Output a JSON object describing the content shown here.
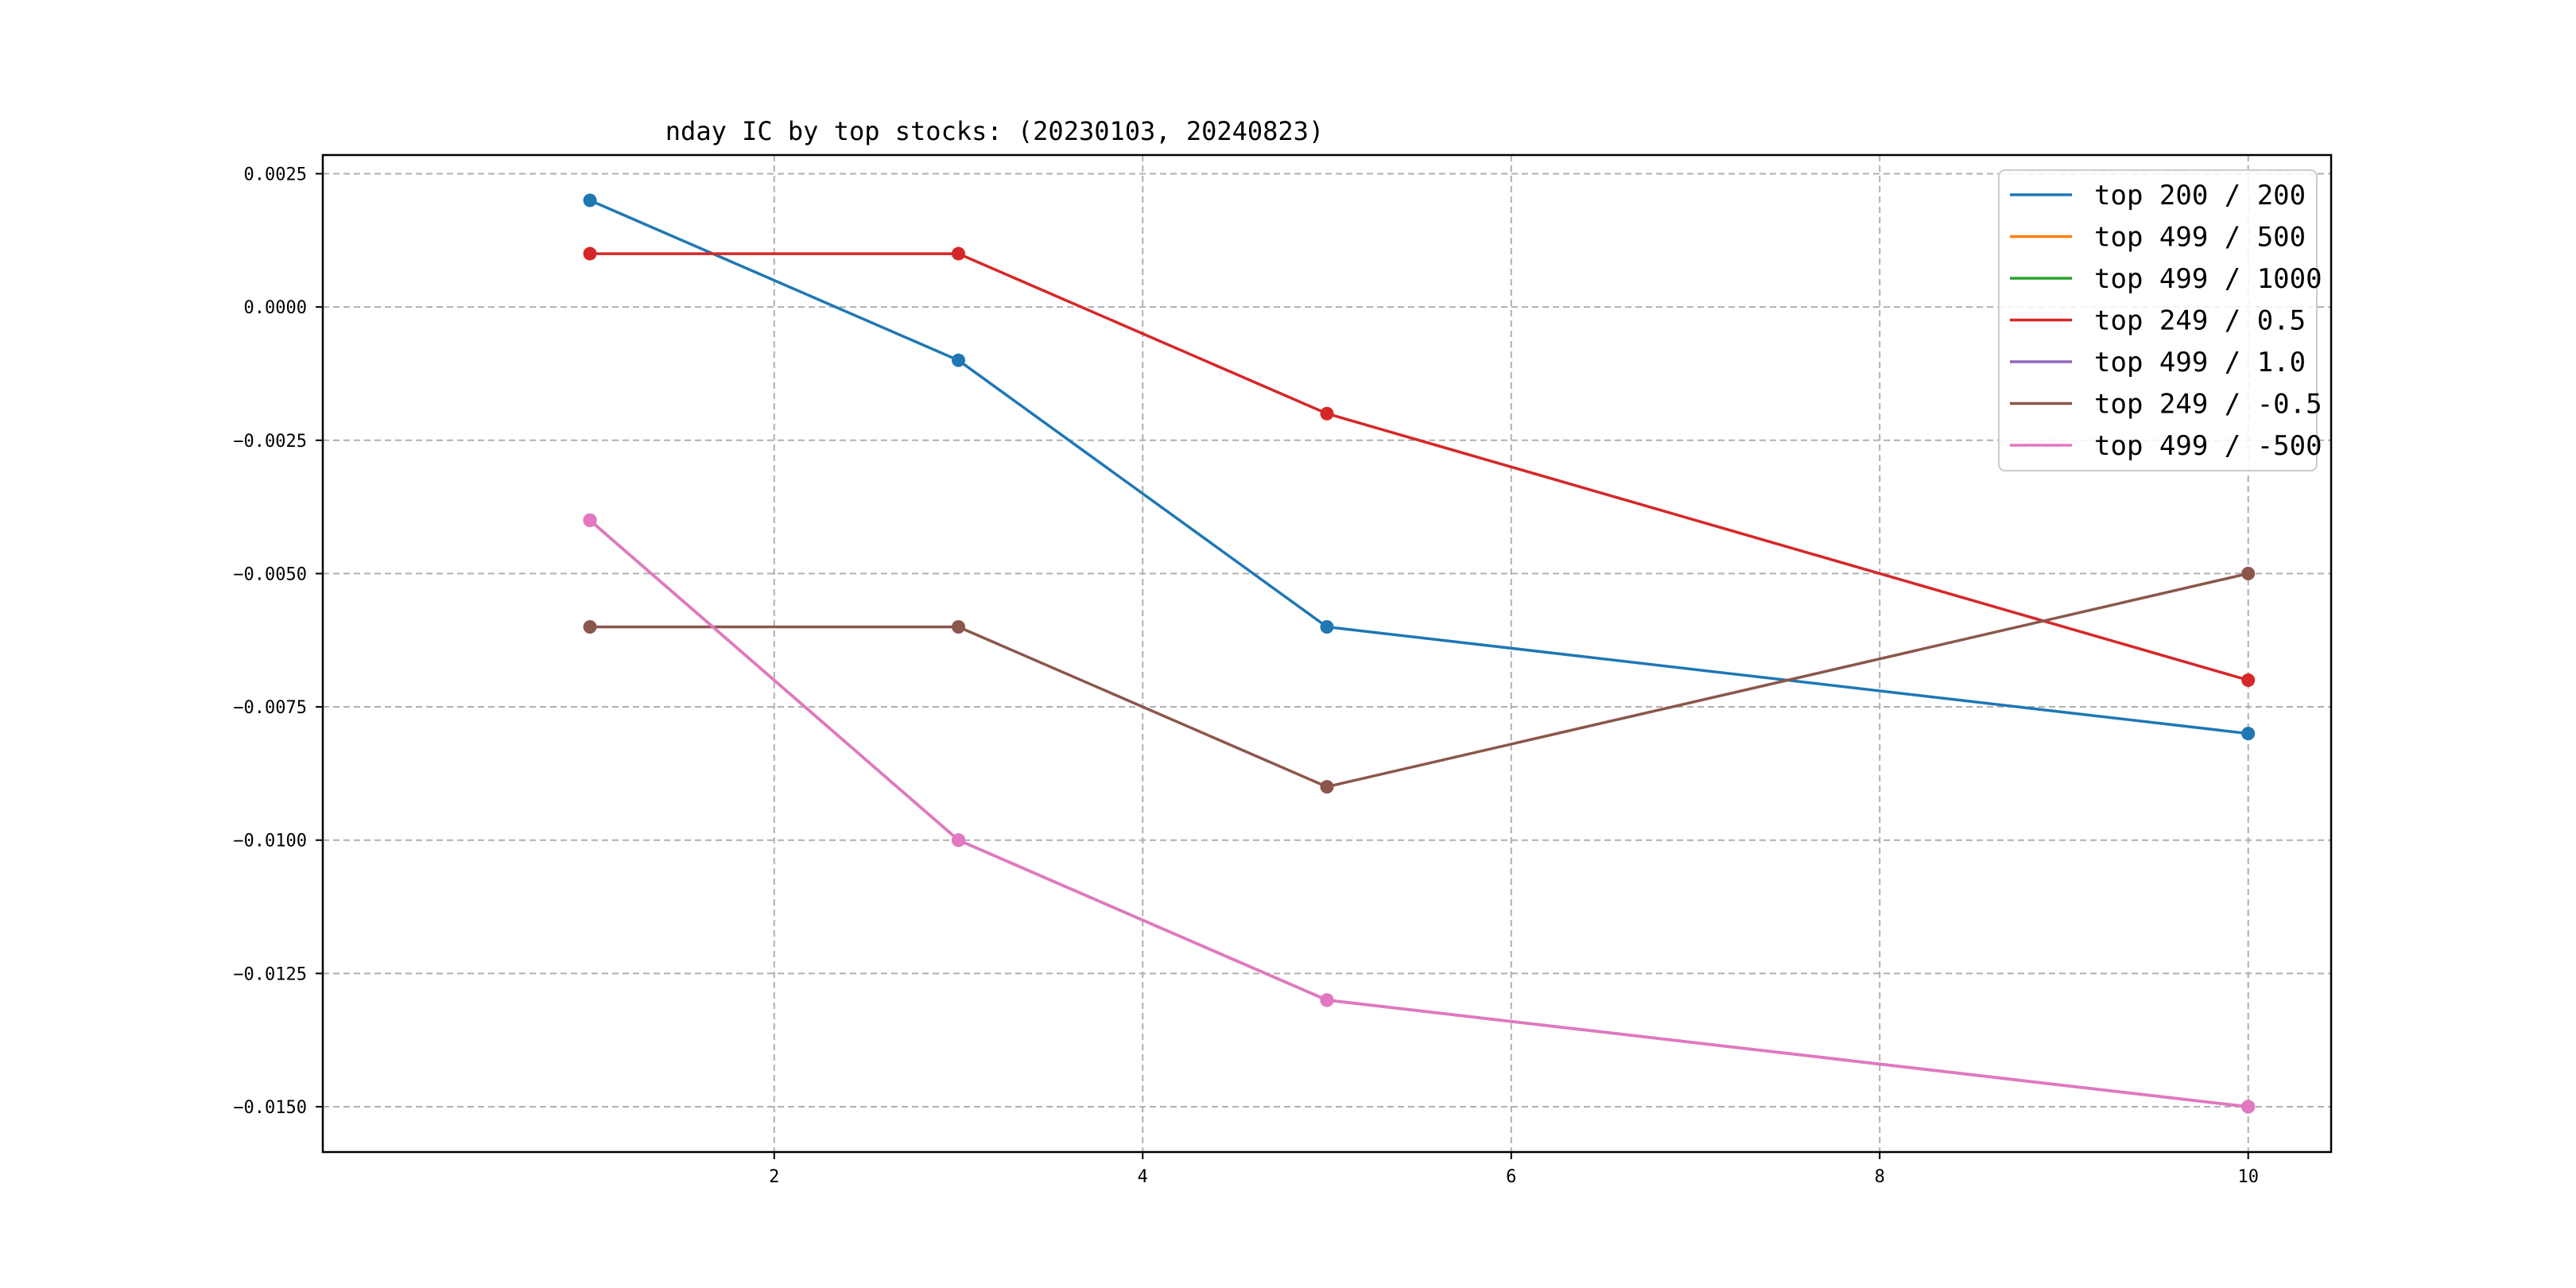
{
  "chart_data": {
    "type": "line",
    "title": "nday IC by top stocks: (20230103, 20240823)",
    "xlabel": "",
    "ylabel": "",
    "x": [
      1,
      3,
      5,
      10
    ],
    "xlim": [
      -0.45,
      10.45
    ],
    "ylim": [
      -0.01585,
      0.00285
    ],
    "xticks": [
      2,
      4,
      6,
      8,
      10
    ],
    "xtick_labels": [
      "2",
      "4",
      "6",
      "8",
      "10"
    ],
    "yticks": [
      0.0025,
      0.0,
      -0.0025,
      -0.005,
      -0.0075,
      -0.01,
      -0.0125,
      -0.015
    ],
    "ytick_labels": [
      "0.0025",
      "0.0000",
      "−0.0025",
      "−0.0050",
      "−0.0075",
      "−0.0100",
      "−0.0125",
      "−0.0150"
    ],
    "grid": true,
    "grid_style": "dashed",
    "legend_position": "top-right",
    "markers": "circle",
    "series": [
      {
        "name": "top 200 / 200",
        "color": "#1f77b4",
        "values": [
          0.002,
          -0.001,
          -0.006,
          -0.008
        ]
      },
      {
        "name": "top 499 / 500",
        "color": "#ff7f0e",
        "values": [
          -0.004,
          -0.01,
          -0.013,
          -0.015
        ]
      },
      {
        "name": "top 499 / 1000",
        "color": "#2ca02c",
        "values": [
          -0.004,
          -0.01,
          -0.013,
          -0.015
        ]
      },
      {
        "name": "top 249 / 0.5",
        "color": "#d62728",
        "values": [
          0.001,
          0.001,
          -0.002,
          -0.007
        ]
      },
      {
        "name": "top 499 / 1.0",
        "color": "#9467bd",
        "values": [
          -0.004,
          -0.01,
          -0.013,
          -0.015
        ]
      },
      {
        "name": "top 249 / -0.5",
        "color": "#8c564b",
        "values": [
          -0.006,
          -0.006,
          -0.009,
          -0.005
        ]
      },
      {
        "name": "top 499 / -500",
        "color": "#e377c2",
        "values": [
          -0.004,
          -0.01,
          -0.013,
          -0.015
        ]
      }
    ]
  }
}
